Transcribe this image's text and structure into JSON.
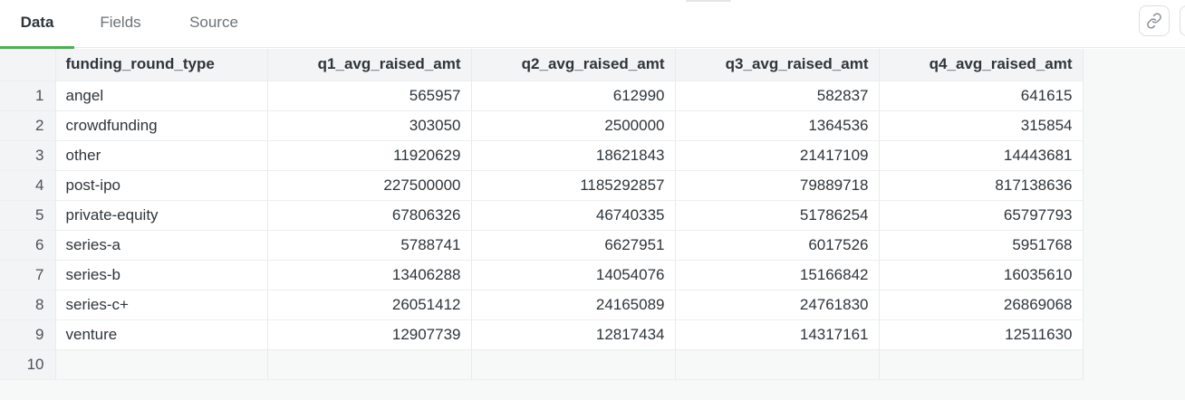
{
  "tabs": [
    {
      "label": "Data",
      "active": true
    },
    {
      "label": "Fields",
      "active": false
    },
    {
      "label": "Source",
      "active": false
    }
  ],
  "toolbar": {
    "link_icon": "link-icon"
  },
  "colors": {
    "active_tab_underline": "#4caf50",
    "header_bg": "#f3f4f5",
    "grid_bg": "#f7f8f8"
  },
  "table": {
    "columns": [
      "funding_round_type",
      "q1_avg_raised_amt",
      "q2_avg_raised_amt",
      "q3_avg_raised_amt",
      "q4_avg_raised_amt"
    ],
    "rows": [
      [
        "1",
        "angel",
        "565957",
        "612990",
        "582837",
        "641615"
      ],
      [
        "2",
        "crowdfunding",
        "303050",
        "2500000",
        "1364536",
        "315854"
      ],
      [
        "3",
        "other",
        "11920629",
        "18621843",
        "21417109",
        "14443681"
      ],
      [
        "4",
        "post-ipo",
        "227500000",
        "1185292857",
        "79889718",
        "817138636"
      ],
      [
        "5",
        "private-equity",
        "67806326",
        "46740335",
        "51786254",
        "65797793"
      ],
      [
        "6",
        "series-a",
        "5788741",
        "6627951",
        "6017526",
        "5951768"
      ],
      [
        "7",
        "series-b",
        "13406288",
        "14054076",
        "15166842",
        "16035610"
      ],
      [
        "8",
        "series-c+",
        "26051412",
        "24165089",
        "24761830",
        "26869068"
      ],
      [
        "9",
        "venture",
        "12907739",
        "12817434",
        "14317161",
        "12511630"
      ],
      [
        "10",
        "",
        "",
        "",
        "",
        ""
      ]
    ]
  }
}
